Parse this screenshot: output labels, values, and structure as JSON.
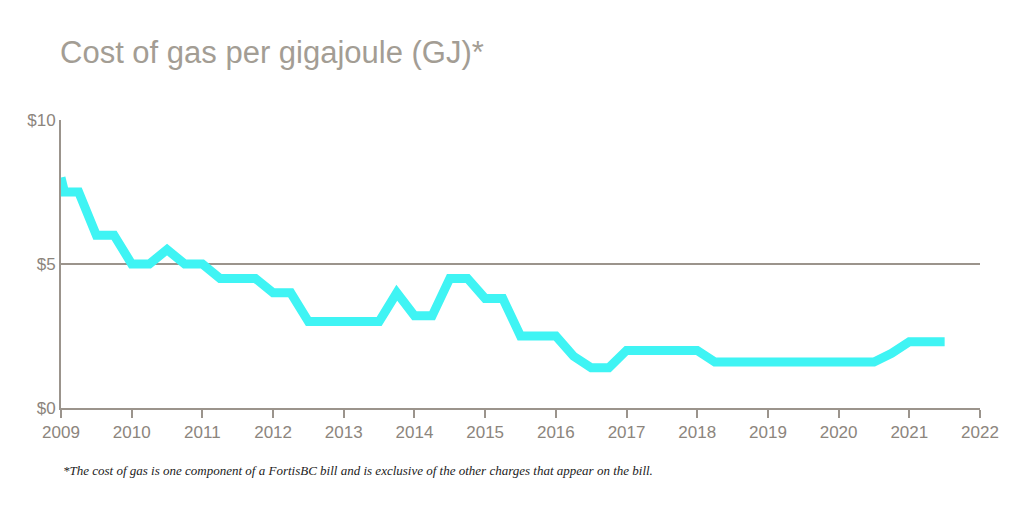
{
  "chart_data": {
    "type": "line",
    "title": "Cost of gas per gigajoule (GJ)*",
    "footnote": "*The cost of gas is one component of a FortisBC bill and is exclusive of the other charges that appear on the bill.",
    "x": [
      2009.0,
      2009.05,
      2009.25,
      2009.5,
      2009.75,
      2010.0,
      2010.25,
      2010.5,
      2010.75,
      2011.0,
      2011.25,
      2011.75,
      2012.0,
      2012.25,
      2012.5,
      2013.5,
      2013.75,
      2014.0,
      2014.25,
      2014.5,
      2014.75,
      2015.0,
      2015.25,
      2015.5,
      2016.0,
      2016.25,
      2016.5,
      2016.75,
      2017.0,
      2018.0,
      2018.25,
      2020.5,
      2020.75,
      2021.0,
      2021.5
    ],
    "values": [
      8.0,
      7.5,
      7.5,
      6.0,
      6.0,
      5.0,
      5.0,
      5.5,
      5.0,
      5.0,
      4.5,
      4.5,
      4.0,
      4.0,
      3.0,
      3.0,
      4.0,
      3.2,
      3.2,
      4.5,
      4.5,
      3.8,
      3.8,
      2.5,
      2.5,
      1.8,
      1.4,
      1.4,
      2.0,
      2.0,
      1.6,
      1.6,
      1.9,
      2.3,
      2.3
    ],
    "color": "#3ff4f4",
    "xlim": [
      2009,
      2022
    ],
    "xticks": [
      2009,
      2010,
      2011,
      2012,
      2013,
      2014,
      2015,
      2016,
      2017,
      2018,
      2019,
      2020,
      2021,
      2022
    ],
    "ylim": [
      0,
      10
    ],
    "yticks": [
      {
        "value": 0,
        "label": "$0"
      },
      {
        "value": 5,
        "label": "$5"
      },
      {
        "value": 10,
        "label": "$10"
      }
    ],
    "grid": true
  }
}
